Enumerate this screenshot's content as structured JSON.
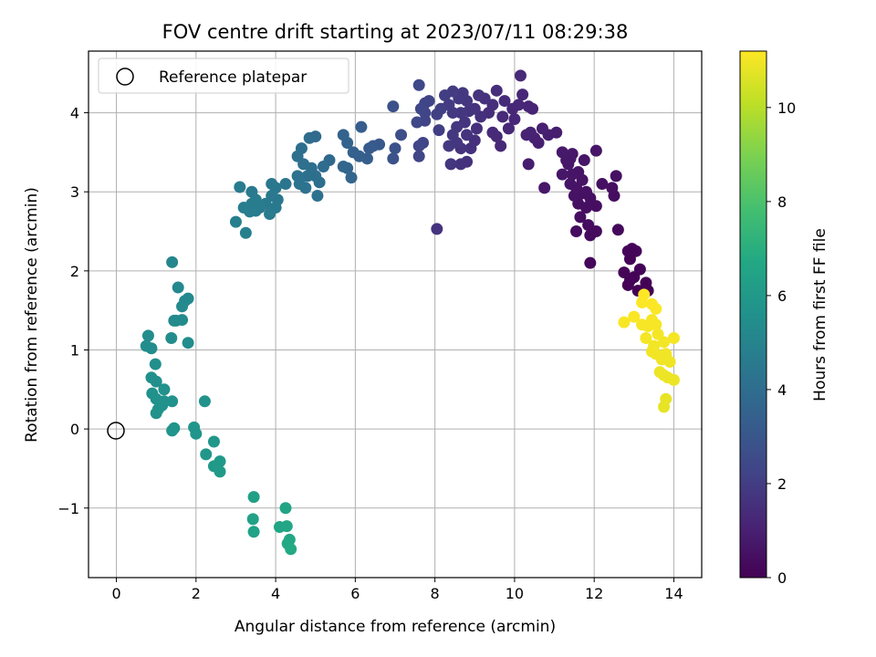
{
  "chart_data": {
    "type": "scatter",
    "title": "FOV centre drift starting at 2023/07/11 08:29:38",
    "xlabel": "Angular distance from reference (arcmin)",
    "ylabel": "Rotation from reference (arcmin)",
    "xlim": [
      -0.7,
      14.7
    ],
    "ylim": [
      -1.88,
      4.78
    ],
    "xticks": [
      0,
      2,
      4,
      6,
      8,
      10,
      12,
      14
    ],
    "yticks": [
      -1,
      0,
      1,
      2,
      3,
      4
    ],
    "grid": true,
    "legend": {
      "placement": "top-left",
      "entries": [
        "Reference platepar"
      ]
    },
    "reference_point": {
      "x": 0,
      "y": 0,
      "marker": "open-circle"
    },
    "colorbar": {
      "label": "Hours from first FF file",
      "colormap": "viridis",
      "range": [
        0,
        11.2
      ],
      "ticks": [
        0,
        2,
        4,
        6,
        8,
        10
      ]
    },
    "series": [
      {
        "points": [
          {
            "x": 4.38,
            "y": -1.52
          },
          {
            "x": 4.3,
            "y": -1.45
          },
          {
            "x": 4.35,
            "y": -1.4
          },
          {
            "x": 4.1,
            "y": -1.24
          },
          {
            "x": 4.28,
            "y": -1.23
          },
          {
            "x": 4.25,
            "y": -1.0
          },
          {
            "x": 3.45,
            "y": -1.3
          },
          {
            "x": 3.43,
            "y": -1.14
          },
          {
            "x": 3.45,
            "y": -0.86
          },
          {
            "x": 2.6,
            "y": -0.54
          },
          {
            "x": 2.45,
            "y": -0.47
          },
          {
            "x": 2.6,
            "y": -0.41
          },
          {
            "x": 2.25,
            "y": -0.32
          },
          {
            "x": 2.45,
            "y": -0.16
          },
          {
            "x": 2.0,
            "y": -0.06
          },
          {
            "x": 1.95,
            "y": 0.02
          },
          {
            "x": 1.45,
            "y": 0.01
          },
          {
            "x": 1.4,
            "y": -0.02
          },
          {
            "x": 2.22,
            "y": 0.35
          },
          {
            "x": 1.0,
            "y": 0.2
          },
          {
            "x": 1.05,
            "y": 0.25
          },
          {
            "x": 1.15,
            "y": 0.3
          },
          {
            "x": 1.0,
            "y": 0.38
          },
          {
            "x": 1.2,
            "y": 0.35
          },
          {
            "x": 1.4,
            "y": 0.35
          },
          {
            "x": 0.9,
            "y": 0.45
          },
          {
            "x": 1.2,
            "y": 0.5
          },
          {
            "x": 1.0,
            "y": 0.6
          },
          {
            "x": 0.88,
            "y": 0.65
          },
          {
            "x": 0.98,
            "y": 0.82
          },
          {
            "x": 0.75,
            "y": 1.05
          },
          {
            "x": 0.88,
            "y": 1.02
          },
          {
            "x": 0.8,
            "y": 1.18
          },
          {
            "x": 1.38,
            "y": 1.15
          },
          {
            "x": 1.8,
            "y": 1.09
          },
          {
            "x": 1.45,
            "y": 1.37
          },
          {
            "x": 1.65,
            "y": 1.38
          },
          {
            "x": 1.5,
            "y": 1.37
          },
          {
            "x": 1.65,
            "y": 1.55
          },
          {
            "x": 1.72,
            "y": 1.62
          },
          {
            "x": 1.8,
            "y": 1.65
          },
          {
            "x": 1.55,
            "y": 1.79
          },
          {
            "x": 1.4,
            "y": 2.11
          },
          {
            "x": 3.25,
            "y": 2.48
          },
          {
            "x": 3.0,
            "y": 2.62
          },
          {
            "x": 3.2,
            "y": 2.8
          },
          {
            "x": 3.35,
            "y": 2.75
          },
          {
            "x": 3.5,
            "y": 2.76
          },
          {
            "x": 3.6,
            "y": 2.8
          },
          {
            "x": 3.4,
            "y": 2.85
          },
          {
            "x": 3.5,
            "y": 2.9
          },
          {
            "x": 3.4,
            "y": 3.0
          },
          {
            "x": 3.1,
            "y": 3.06
          },
          {
            "x": 3.75,
            "y": 2.85
          },
          {
            "x": 3.85,
            "y": 2.72
          },
          {
            "x": 4.0,
            "y": 2.8
          },
          {
            "x": 4.05,
            "y": 2.9
          },
          {
            "x": 3.9,
            "y": 2.95
          },
          {
            "x": 3.9,
            "y": 3.1
          },
          {
            "x": 4.0,
            "y": 3.05
          },
          {
            "x": 4.25,
            "y": 3.1
          },
          {
            "x": 4.55,
            "y": 3.2
          },
          {
            "x": 4.6,
            "y": 3.1
          },
          {
            "x": 4.75,
            "y": 3.05
          },
          {
            "x": 4.8,
            "y": 3.2
          },
          {
            "x": 4.9,
            "y": 3.3
          },
          {
            "x": 5.0,
            "y": 3.2
          },
          {
            "x": 5.1,
            "y": 3.12
          },
          {
            "x": 5.05,
            "y": 2.95
          },
          {
            "x": 4.7,
            "y": 3.35
          },
          {
            "x": 4.55,
            "y": 3.45
          },
          {
            "x": 4.65,
            "y": 3.55
          },
          {
            "x": 4.85,
            "y": 3.68
          },
          {
            "x": 5.0,
            "y": 3.7
          },
          {
            "x": 5.2,
            "y": 3.32
          },
          {
            "x": 5.35,
            "y": 3.4
          },
          {
            "x": 5.7,
            "y": 3.32
          },
          {
            "x": 5.8,
            "y": 3.3
          },
          {
            "x": 5.9,
            "y": 3.18
          },
          {
            "x": 5.7,
            "y": 3.72
          },
          {
            "x": 5.8,
            "y": 3.62
          },
          {
            "x": 5.95,
            "y": 3.5
          },
          {
            "x": 6.1,
            "y": 3.45
          },
          {
            "x": 6.3,
            "y": 3.42
          },
          {
            "x": 6.35,
            "y": 3.55
          },
          {
            "x": 6.45,
            "y": 3.58
          },
          {
            "x": 6.6,
            "y": 3.6
          },
          {
            "x": 6.15,
            "y": 3.82
          },
          {
            "x": 6.95,
            "y": 3.42
          },
          {
            "x": 7.0,
            "y": 3.55
          },
          {
            "x": 7.15,
            "y": 3.72
          },
          {
            "x": 6.95,
            "y": 4.08
          },
          {
            "x": 7.6,
            "y": 3.45
          },
          {
            "x": 7.6,
            "y": 3.58
          },
          {
            "x": 7.7,
            "y": 3.62
          },
          {
            "x": 7.55,
            "y": 3.88
          },
          {
            "x": 7.75,
            "y": 3.9
          },
          {
            "x": 7.65,
            "y": 4.05
          },
          {
            "x": 7.75,
            "y": 4.12
          },
          {
            "x": 7.85,
            "y": 4.15
          },
          {
            "x": 7.6,
            "y": 4.35
          },
          {
            "x": 7.75,
            "y": 4.0
          },
          {
            "x": 8.05,
            "y": 2.53
          },
          {
            "x": 8.1,
            "y": 3.78
          },
          {
            "x": 8.05,
            "y": 3.98
          },
          {
            "x": 8.15,
            "y": 4.05
          },
          {
            "x": 8.25,
            "y": 4.22
          },
          {
            "x": 8.35,
            "y": 4.1
          },
          {
            "x": 8.45,
            "y": 4.0
          },
          {
            "x": 8.45,
            "y": 3.72
          },
          {
            "x": 8.35,
            "y": 3.58
          },
          {
            "x": 8.4,
            "y": 3.35
          },
          {
            "x": 8.55,
            "y": 3.62
          },
          {
            "x": 8.65,
            "y": 3.55
          },
          {
            "x": 8.55,
            "y": 3.82
          },
          {
            "x": 8.65,
            "y": 4.0
          },
          {
            "x": 8.45,
            "y": 4.27
          },
          {
            "x": 8.6,
            "y": 4.18
          },
          {
            "x": 8.7,
            "y": 4.25
          },
          {
            "x": 8.8,
            "y": 4.15
          },
          {
            "x": 8.85,
            "y": 4.02
          },
          {
            "x": 8.75,
            "y": 3.88
          },
          {
            "x": 8.8,
            "y": 3.72
          },
          {
            "x": 8.65,
            "y": 3.35
          },
          {
            "x": 8.8,
            "y": 3.38
          },
          {
            "x": 8.9,
            "y": 3.55
          },
          {
            "x": 9.0,
            "y": 3.65
          },
          {
            "x": 9.05,
            "y": 3.8
          },
          {
            "x": 9.0,
            "y": 4.05
          },
          {
            "x": 9.1,
            "y": 4.22
          },
          {
            "x": 9.25,
            "y": 4.18
          },
          {
            "x": 9.15,
            "y": 3.95
          },
          {
            "x": 9.35,
            "y": 4.0
          },
          {
            "x": 9.45,
            "y": 4.1
          },
          {
            "x": 9.55,
            "y": 4.28
          },
          {
            "x": 9.45,
            "y": 3.75
          },
          {
            "x": 9.55,
            "y": 3.7
          },
          {
            "x": 9.65,
            "y": 3.58
          },
          {
            "x": 9.7,
            "y": 3.95
          },
          {
            "x": 9.75,
            "y": 4.15
          },
          {
            "x": 9.95,
            "y": 4.05
          },
          {
            "x": 10.0,
            "y": 3.92
          },
          {
            "x": 10.1,
            "y": 4.1
          },
          {
            "x": 9.85,
            "y": 3.8
          },
          {
            "x": 10.15,
            "y": 4.47
          },
          {
            "x": 10.2,
            "y": 4.23
          },
          {
            "x": 10.35,
            "y": 4.08
          },
          {
            "x": 10.45,
            "y": 4.05
          },
          {
            "x": 10.3,
            "y": 3.72
          },
          {
            "x": 10.4,
            "y": 3.75
          },
          {
            "x": 10.5,
            "y": 3.68
          },
          {
            "x": 10.6,
            "y": 3.62
          },
          {
            "x": 10.7,
            "y": 3.8
          },
          {
            "x": 10.85,
            "y": 3.72
          },
          {
            "x": 10.35,
            "y": 3.35
          },
          {
            "x": 10.75,
            "y": 3.05
          },
          {
            "x": 11.05,
            "y": 3.75
          },
          {
            "x": 11.2,
            "y": 3.5
          },
          {
            "x": 11.3,
            "y": 3.4
          },
          {
            "x": 11.2,
            "y": 3.22
          },
          {
            "x": 11.35,
            "y": 3.35
          },
          {
            "x": 11.4,
            "y": 3.1
          },
          {
            "x": 11.45,
            "y": 3.22
          },
          {
            "x": 11.55,
            "y": 3.05
          },
          {
            "x": 11.6,
            "y": 3.25
          },
          {
            "x": 11.7,
            "y": 3.15
          },
          {
            "x": 11.5,
            "y": 2.95
          },
          {
            "x": 11.6,
            "y": 2.85
          },
          {
            "x": 11.7,
            "y": 2.98
          },
          {
            "x": 11.8,
            "y": 3.0
          },
          {
            "x": 11.9,
            "y": 2.92
          },
          {
            "x": 11.8,
            "y": 2.8
          },
          {
            "x": 11.65,
            "y": 2.68
          },
          {
            "x": 11.55,
            "y": 2.5
          },
          {
            "x": 11.85,
            "y": 2.58
          },
          {
            "x": 11.9,
            "y": 2.45
          },
          {
            "x": 12.05,
            "y": 2.5
          },
          {
            "x": 12.05,
            "y": 2.82
          },
          {
            "x": 12.2,
            "y": 3.1
          },
          {
            "x": 12.45,
            "y": 3.05
          },
          {
            "x": 12.5,
            "y": 2.95
          },
          {
            "x": 12.55,
            "y": 3.2
          },
          {
            "x": 12.05,
            "y": 3.52
          },
          {
            "x": 12.6,
            "y": 2.52
          },
          {
            "x": 11.9,
            "y": 2.1
          },
          {
            "x": 11.75,
            "y": 3.4
          },
          {
            "x": 11.45,
            "y": 3.48
          },
          {
            "x": 11.4,
            "y": 3.42
          },
          {
            "x": 12.85,
            "y": 2.25
          },
          {
            "x": 12.95,
            "y": 2.28
          },
          {
            "x": 13.05,
            "y": 2.25
          },
          {
            "x": 12.9,
            "y": 2.15
          },
          {
            "x": 12.75,
            "y": 1.98
          },
          {
            "x": 12.9,
            "y": 1.88
          },
          {
            "x": 13.0,
            "y": 1.92
          },
          {
            "x": 13.15,
            "y": 2.02
          },
          {
            "x": 12.85,
            "y": 1.82
          },
          {
            "x": 13.1,
            "y": 1.75
          },
          {
            "x": 13.3,
            "y": 1.85
          },
          {
            "x": 13.25,
            "y": 1.7
          },
          {
            "x": 13.35,
            "y": 1.75
          },
          {
            "x": 13.2,
            "y": 1.6
          },
          {
            "x": 13.45,
            "y": 1.58
          },
          {
            "x": 13.55,
            "y": 1.52
          },
          {
            "x": 13.0,
            "y": 1.42
          },
          {
            "x": 12.75,
            "y": 1.35
          },
          {
            "x": 13.2,
            "y": 1.32
          },
          {
            "x": 13.35,
            "y": 1.3
          },
          {
            "x": 13.45,
            "y": 1.38
          },
          {
            "x": 13.55,
            "y": 1.32
          },
          {
            "x": 13.6,
            "y": 1.2
          },
          {
            "x": 13.3,
            "y": 1.15
          },
          {
            "x": 13.5,
            "y": 1.05
          },
          {
            "x": 13.45,
            "y": 0.98
          },
          {
            "x": 13.55,
            "y": 0.95
          },
          {
            "x": 13.75,
            "y": 1.1
          },
          {
            "x": 13.8,
            "y": 0.95
          },
          {
            "x": 13.7,
            "y": 0.88
          },
          {
            "x": 14.0,
            "y": 1.15
          },
          {
            "x": 13.9,
            "y": 0.85
          },
          {
            "x": 13.65,
            "y": 0.72
          },
          {
            "x": 13.75,
            "y": 0.68
          },
          {
            "x": 13.85,
            "y": 0.65
          },
          {
            "x": 14.0,
            "y": 0.62
          },
          {
            "x": 13.8,
            "y": 0.38
          },
          {
            "x": 13.75,
            "y": 0.28
          }
        ]
      }
    ]
  }
}
